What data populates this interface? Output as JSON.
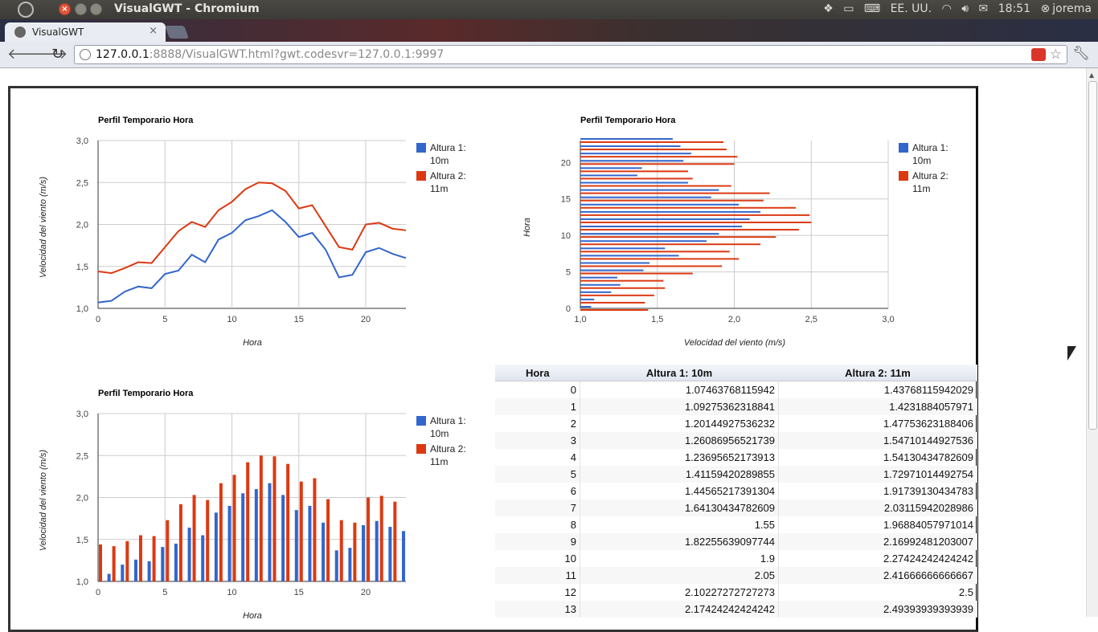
{
  "window": {
    "title": "VisualGWT - Chromium"
  },
  "tray": {
    "keyboard": "EE. UU.",
    "time": "18:51",
    "user": "jorema"
  },
  "tabs": [
    {
      "label": "VisualGWT"
    }
  ],
  "address": {
    "host": "127.0.0.1",
    "rest": ":8888/VisualGWT.html?gwt.codesvr=127.0.0.1:9997"
  },
  "colors": {
    "series1": "#3366cc",
    "series2": "#dc3912"
  },
  "charts": [
    {
      "type": "line",
      "title": "Perfil Temporario Hora",
      "xlabel": "Hora",
      "ylabel": "Velocidad del viento (m/s)",
      "xticks": [
        "0",
        "5",
        "10",
        "15",
        "20"
      ],
      "yticks": [
        "1,0",
        "1,5",
        "2,0",
        "2,5",
        "3,0"
      ],
      "legend": [
        "Altura 1:",
        "10m",
        "Altura 2:",
        "11m"
      ]
    },
    {
      "type": "hbar",
      "title": "Perfil Temporario Hora",
      "xlabel": "Velocidad del viento (m/s)",
      "ylabel": "Hora",
      "xticks": [
        "1,0",
        "1,5",
        "2,0",
        "2,5",
        "3,0"
      ],
      "yticks": [
        "0",
        "5",
        "10",
        "15",
        "20"
      ],
      "legend": [
        "Altura 1:",
        "10m",
        "Altura 2:",
        "11m"
      ]
    },
    {
      "type": "column",
      "title": "Perfil Temporario Hora",
      "xlabel": "Hora",
      "ylabel": "Velocidad del viento (m/s)",
      "xticks": [
        "0",
        "5",
        "10",
        "15",
        "20"
      ],
      "yticks": [
        "1,0",
        "1,5",
        "2,0",
        "2,5",
        "3,0"
      ],
      "legend": [
        "Altura 1:",
        "10m",
        "Altura 2:",
        "11m"
      ]
    }
  ],
  "chart_data": {
    "type": "line",
    "x": [
      0,
      1,
      2,
      3,
      4,
      5,
      6,
      7,
      8,
      9,
      10,
      11,
      12,
      13,
      14,
      15,
      16,
      17,
      18,
      19,
      20,
      21,
      22,
      23
    ],
    "series": [
      {
        "name": "Altura 1: 10m",
        "values": [
          1.07,
          1.09,
          1.2,
          1.26,
          1.24,
          1.41,
          1.45,
          1.64,
          1.55,
          1.82,
          1.9,
          2.05,
          2.1,
          2.17,
          2.03,
          1.85,
          1.9,
          1.7,
          1.37,
          1.4,
          1.67,
          1.72,
          1.65,
          1.6
        ]
      },
      {
        "name": "Altura 2: 11m",
        "values": [
          1.44,
          1.42,
          1.48,
          1.55,
          1.54,
          1.73,
          1.92,
          2.03,
          1.97,
          2.17,
          2.27,
          2.42,
          2.5,
          2.49,
          2.4,
          2.19,
          2.23,
          1.98,
          1.73,
          1.7,
          2.0,
          2.02,
          1.95,
          1.93
        ]
      }
    ],
    "xlabel": "Hora",
    "ylabel": "Velocidad del viento (m/s)",
    "xlim": [
      0,
      23
    ],
    "ylim": [
      1.0,
      3.0
    ]
  },
  "table": {
    "headers": [
      "Hora",
      "Altura 1: 10m",
      "Altura 2: 11m"
    ],
    "rows": [
      [
        "0",
        "1.07463768115942",
        "1.43768115942029"
      ],
      [
        "1",
        "1.09275362318841",
        "1.4231884057971"
      ],
      [
        "2",
        "1.20144927536232",
        "1.47753623188406"
      ],
      [
        "3",
        "1.26086956521739",
        "1.54710144927536"
      ],
      [
        "4",
        "1.23695652173913",
        "1.54130434782609"
      ],
      [
        "5",
        "1.41159420289855",
        "1.72971014492754"
      ],
      [
        "6",
        "1.44565217391304",
        "1.91739130434783"
      ],
      [
        "7",
        "1.64130434782609",
        "2.03115942028986"
      ],
      [
        "8",
        "1.55",
        "1.96884057971014"
      ],
      [
        "9",
        "1.82255639097744",
        "2.16992481203007"
      ],
      [
        "10",
        "1.9",
        "2.27424242424242"
      ],
      [
        "11",
        "2.05",
        "2.41666666666667"
      ],
      [
        "12",
        "2.10227272727273",
        "2.5"
      ],
      [
        "13",
        "2.17424242424242",
        "2.49393939393939"
      ]
    ]
  }
}
